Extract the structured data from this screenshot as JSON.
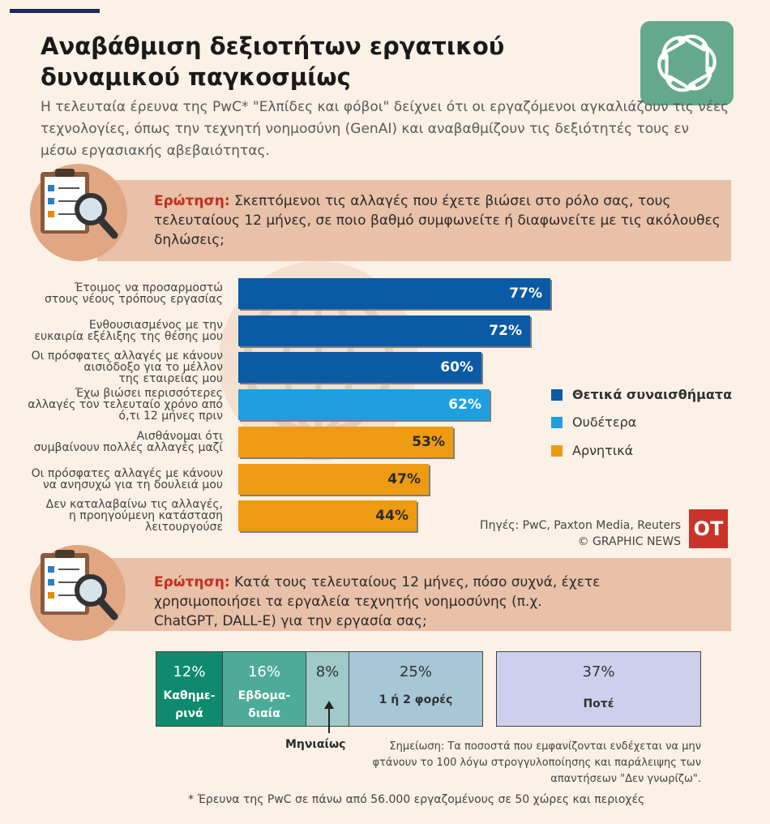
{
  "header": {
    "title": "Αναβάθμιση δεξιοτήτων εργατικού δυναμικού παγκοσμίως",
    "intro": "Η τελευταία έρευνα της PwC*  \"Ελπίδες και φόβοι\" δείχνει ότι οι εργαζόμενοι αγκαλιάζουν τις νέες τεχνολογίες, όπως την τεχνητή νοημοσύνη (GenAI) και αναβαθμίζουν τις δεξιότητές τους εν μέσω εργασιακής αβεβαιότητας."
  },
  "question1": {
    "label": "Ερώτηση:",
    "text": " Σκεπτόμενοι τις αλλαγές που έχετε βιώσει στο ρόλο σας, τους τελευταίους 12 μήνες, σε ποιο βαθμό συμφωνείτε ή διαφωνείτε με τις ακόλουθες δηλώσεις;"
  },
  "question2": {
    "label": "Ερώτηση:",
    "text": " Κατά τους τελευταίους 12 μήνες, πόσο συχνά, έχετε χρησιμοποιήσει τα εργαλεία τεχνητής νοημοσύνης (π.χ. ChatGPT, DALL-E) για την εργασία σας;"
  },
  "colors": {
    "positive": "#0b5aa6",
    "neutral": "#1d9fe0",
    "negative": "#ee9b12",
    "seg_daily": "#0f8a6e",
    "seg_weekly": "#4eab97",
    "seg_monthly": "#9fcac8",
    "seg_once": "#a7c6d6",
    "seg_never": "#ccd0ec"
  },
  "chart_data": [
    {
      "type": "bar",
      "orientation": "horizontal",
      "categories": [
        "Έτοιμος να προσαρμοστώ στους νέους τρόπους εργασίας",
        "Ενθουσιασμένος με  την ευκαιρία εξέλιξης της θέσης μου",
        "Οι πρόσφατες αλλαγές με κάνουν αισιόδοξο για το μέλλον της εταιρείας μου",
        "Έχω βιώσει περισσότερες αλλαγές τον τελευταίο χρόνο από ό,τι 12 μήνες πριν",
        "Αισθάνομαι ότι συμβαίνουν πολλές αλλαγές μαζί",
        "Οι πρόσφατες αλλαγές με κάνουν να ανησυχώ για τη δουλειά μου",
        "Δεν καταλαβαίνω τις αλλαγές, η προηγούμενη κατάσταση λειτουργούσε"
      ],
      "category_lines": [
        [
          "Έτοιμος να προσαρμοστώ",
          "στους νέους τρόπους εργασίας"
        ],
        [
          "Ενθουσιασμένος με  την",
          "ευκαιρία εξέλιξης της θέσης μου"
        ],
        [
          "Οι πρόσφατες αλλαγές με κάνουν",
          "αισιόδοξο για το μέλλον",
          "της εταιρείας μου"
        ],
        [
          "Έχω βιώσει περισσότερες",
          "αλλαγές τον τελευταίο χρόνο από",
          "ό,τι 12 μήνες πριν"
        ],
        [
          "Αισθάνομαι ότι",
          "συμβαίνουν πολλές αλλαγές μαζί"
        ],
        [
          "Οι πρόσφατες αλλαγές με κάνουν",
          "να ανησυχώ για τη δουλειά μου"
        ],
        [
          "Δεν καταλαβαίνω τις αλλαγές,",
          "η προηγούμενη κατάσταση",
          "λειτουργούσε"
        ]
      ],
      "values": [
        77,
        72,
        60,
        62,
        53,
        47,
        44
      ],
      "value_labels": [
        "77%",
        "72%",
        "60%",
        "62%",
        "53%",
        "47%",
        "44%"
      ],
      "groups": [
        "positive",
        "positive",
        "positive",
        "neutral",
        "negative",
        "negative",
        "negative"
      ],
      "legend": [
        {
          "key": "positive",
          "label": "Θετικά συναισθήματα"
        },
        {
          "key": "neutral",
          "label": "Ουδέτερα"
        },
        {
          "key": "negative",
          "label": "Αρνητικά"
        }
      ],
      "legend_position": "right",
      "unit": "%"
    },
    {
      "type": "bar",
      "orientation": "stacked-horizontal",
      "categories": [
        "Καθημερινά",
        "Εβδομαδιαία",
        "Μηνιαίως",
        "1 ή 2 φορές",
        "Ποτέ"
      ],
      "values": [
        12,
        16,
        8,
        25,
        37
      ],
      "value_labels": [
        "12%",
        "16%",
        "8%",
        "25%",
        "37%"
      ],
      "unit": "%"
    }
  ],
  "usage_segments": {
    "daily": {
      "pct": "12%",
      "line1": "Καθημε-",
      "line2": "ρινά"
    },
    "weekly": {
      "pct": "16%",
      "line1": "Εβδομα-",
      "line2": "διαία"
    },
    "monthly": {
      "pct": "8%"
    },
    "once": {
      "pct": "25%",
      "name": "1 ή 2 φορές"
    },
    "never": {
      "pct": "37%",
      "name": "Ποτέ"
    },
    "monthly_label": "Μηνιαίως"
  },
  "sources": {
    "line1": "Πηγές: PwC, Paxton Media, Reuters",
    "line2": "© GRAPHIC NEWS",
    "badge": "OT"
  },
  "note": "Σημείωση: Τα ποσοστά που εμφανίζονται ενδέχεται να μην φτάνουν το 100 λόγω στρογγυλοποίησης και παράλειψης των απαντήσεων \"Δεν γνωρίζω\".",
  "footnote": "*   Έρευνα της PwC σε πάνω από 56.000 εργαζομένους σε 50 χώρες και περιοχές"
}
